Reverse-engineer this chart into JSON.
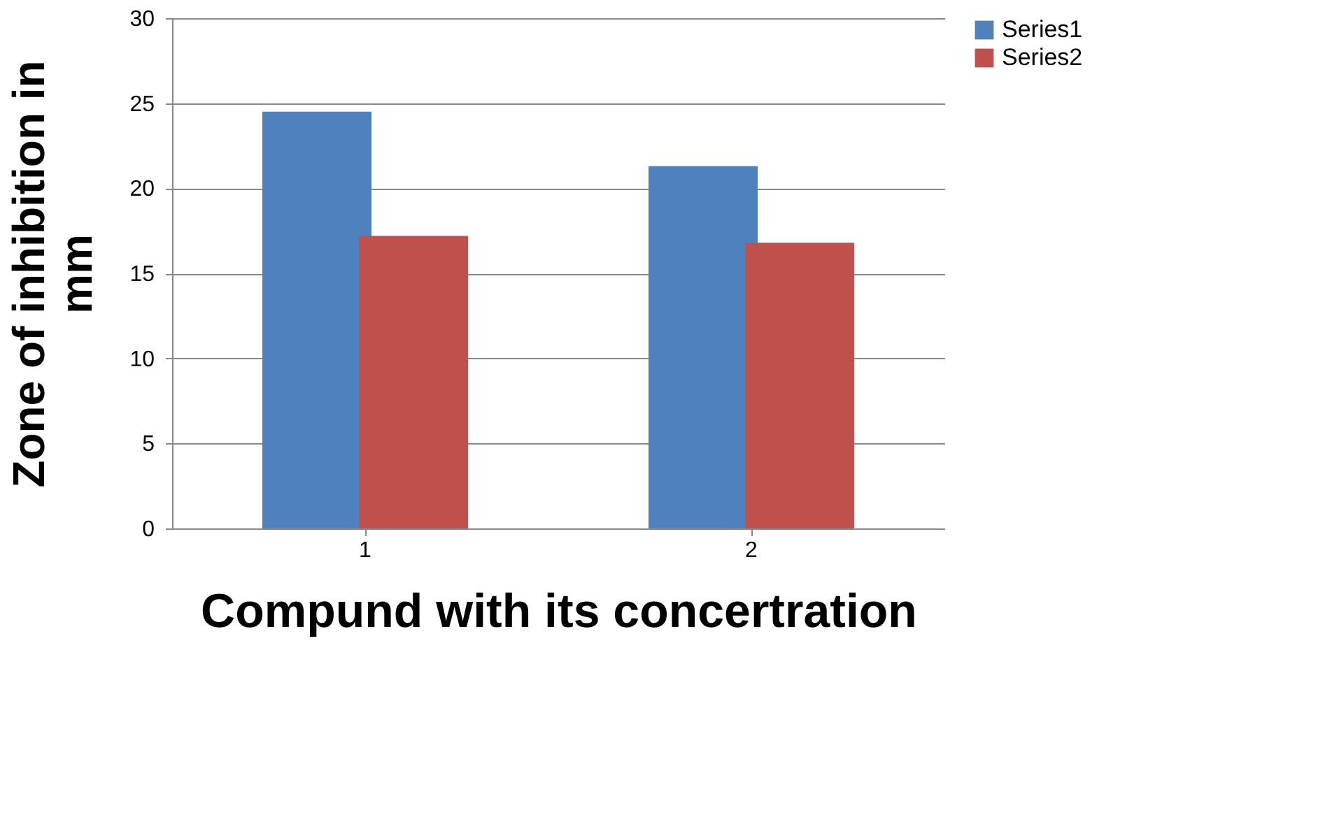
{
  "chart_data": {
    "type": "bar",
    "xlabel": "Compund with its concertration",
    "ylabel": "Zone of inhibition in mm",
    "categories": [
      "1",
      "2"
    ],
    "series": [
      {
        "name": "Series1",
        "color": "#4f81bd",
        "values": [
          24.5,
          21.3
        ]
      },
      {
        "name": "Series2",
        "color": "#c0504d",
        "values": [
          17.2,
          16.8
        ]
      }
    ],
    "ylim": [
      0,
      30
    ],
    "yticks": [
      0,
      5,
      10,
      15,
      20,
      25,
      30
    ],
    "grid": "y",
    "legend": "right"
  }
}
